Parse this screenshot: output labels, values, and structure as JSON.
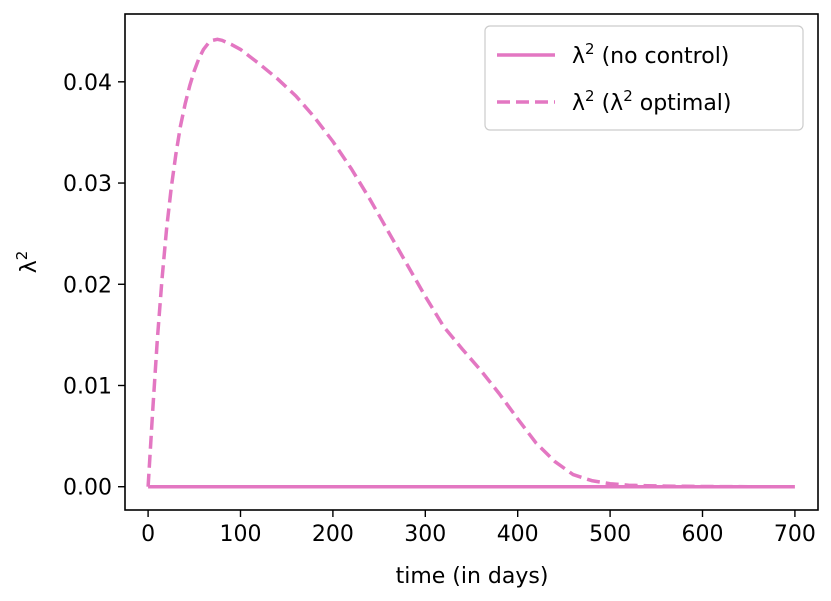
{
  "chart_data": {
    "type": "line",
    "title": "",
    "xlabel": "time (in days)",
    "ylabel": "λ",
    "ylabel_superscript": "2",
    "xlim": [
      -25,
      725
    ],
    "ylim": [
      -0.0023,
      0.0467
    ],
    "xticks": [
      0,
      100,
      200,
      300,
      400,
      500,
      600,
      700
    ],
    "xtick_labels": [
      "0",
      "100",
      "200",
      "300",
      "400",
      "500",
      "600",
      "700"
    ],
    "yticks": [
      0.0,
      0.01,
      0.02,
      0.03,
      0.04
    ],
    "ytick_labels": [
      "0.00",
      "0.01",
      "0.02",
      "0.03",
      "0.04"
    ],
    "grid": false,
    "legend_position": "top-right",
    "colors": {
      "series": "#e377c2",
      "axes": "#000000",
      "legend_border": "#cccccc"
    },
    "series": [
      {
        "name": "λ",
        "name_superscript": "2",
        "name_suffix": " (no control)",
        "style": "solid",
        "x": [
          0,
          100,
          200,
          300,
          400,
          500,
          600,
          700
        ],
        "y": [
          0,
          0,
          0,
          0,
          0,
          0,
          0,
          0
        ]
      },
      {
        "name": "λ",
        "name_superscript": "2",
        "name_suffix": " (λ² optimal)",
        "legend_parts": {
          "prefix": " (",
          "inner": "λ",
          "inner_sup": "2",
          "suffix": " optimal)"
        },
        "style": "dashed",
        "x": [
          0,
          5,
          10,
          15,
          20,
          25,
          30,
          35,
          40,
          45,
          50,
          55,
          60,
          65,
          70,
          75,
          80,
          90,
          100,
          110,
          120,
          140,
          160,
          180,
          200,
          220,
          240,
          260,
          280,
          300,
          320,
          340,
          360,
          380,
          400,
          420,
          440,
          460,
          480,
          500,
          520,
          540,
          560,
          580,
          600,
          620,
          650,
          680,
          700
        ],
        "y": [
          0.0,
          0.0075,
          0.0145,
          0.0205,
          0.0255,
          0.0295,
          0.0328,
          0.0356,
          0.0378,
          0.0396,
          0.0411,
          0.0423,
          0.0432,
          0.0438,
          0.0441,
          0.0442,
          0.0441,
          0.0437,
          0.0432,
          0.0425,
          0.0418,
          0.0403,
          0.0386,
          0.0365,
          0.0341,
          0.0314,
          0.0284,
          0.0252,
          0.022,
          0.0188,
          0.0158,
          0.0136,
          0.0115,
          0.0092,
          0.0067,
          0.0043,
          0.0025,
          0.0012,
          0.0006,
          0.0003,
          0.00015,
          0.0001,
          6e-05,
          4e-05,
          2e-05,
          1e-05,
          0.0,
          0.0,
          0.0
        ]
      }
    ]
  }
}
